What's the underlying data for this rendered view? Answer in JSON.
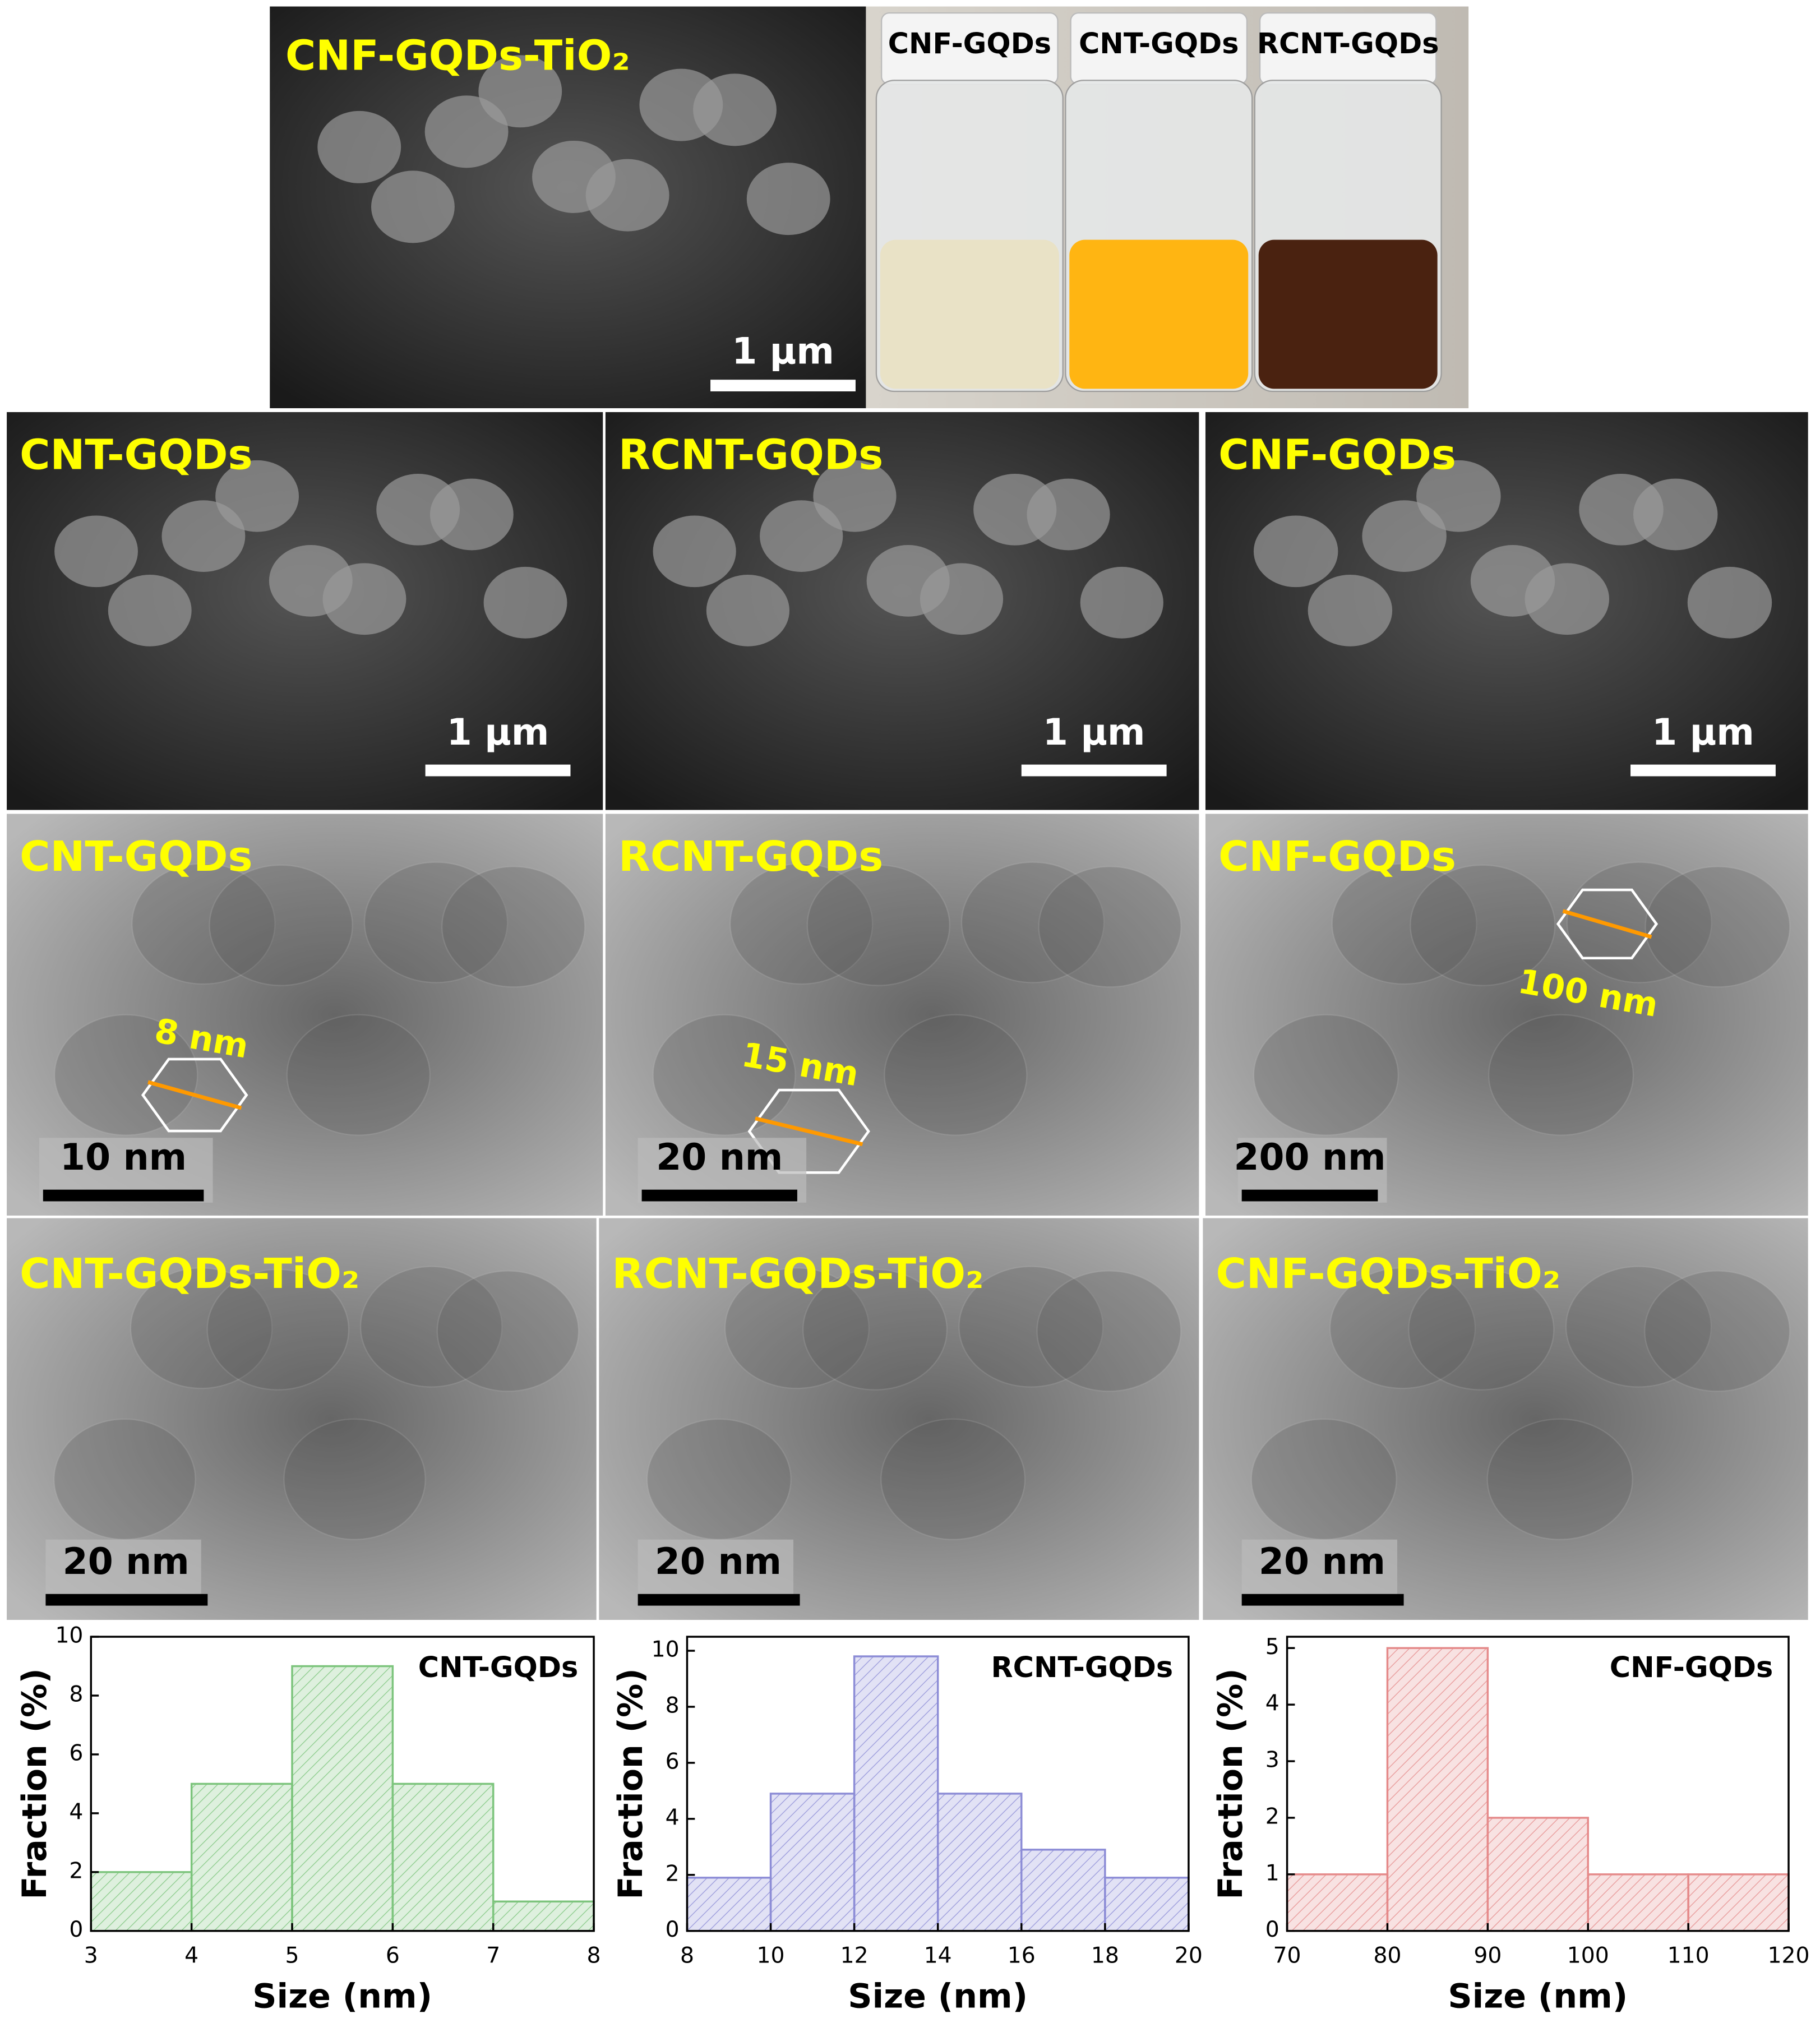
{
  "top": {
    "sem_label": "CNF-GQDs-TiO₂",
    "sem_scale_bar": "1 µm",
    "vial_labels": [
      "CNF-GQDs",
      "CNT-GQDs",
      "RCNT-GQDs"
    ]
  },
  "sem_panels": [
    {
      "label": "CNT-GQDs",
      "scale_bar": "1 µm"
    },
    {
      "label": "RCNT-GQDs",
      "scale_bar": "1 µm"
    },
    {
      "label": "CNF-GQDs",
      "scale_bar": "1 µm"
    }
  ],
  "tem_panels": [
    {
      "label": "CNT-GQDs",
      "scale_bar": "10 nm",
      "particle_size": "8 nm"
    },
    {
      "label": "RCNT-GQDs",
      "scale_bar": "20 nm",
      "particle_size": "15 nm"
    },
    {
      "label": "CNF-GQDs",
      "scale_bar": "200 nm",
      "particle_size": "100 nm"
    }
  ],
  "composite_panels": [
    {
      "label": "CNT-GQDs-TiO₂",
      "scale_bar": "20 nm"
    },
    {
      "label": "RCNT-GQDs-TiO₂",
      "scale_bar": "20 nm"
    },
    {
      "label": "CNF-GQDs-TiO₂",
      "scale_bar": "20 nm"
    }
  ],
  "chart_data": [
    {
      "type": "histogram",
      "title": "CNT-GQDs",
      "x_label": "Size (nm)",
      "y_label": "Fraction (%)",
      "bins": [
        3,
        4,
        5,
        6,
        7,
        8
      ],
      "values": [
        2,
        5,
        9,
        5,
        1
      ],
      "color": "#7cc47c",
      "xlim": [
        3,
        8
      ],
      "xticks": [
        3,
        4,
        5,
        6,
        7,
        8
      ],
      "ylim": [
        0,
        10
      ],
      "yticks": [
        0,
        2,
        4,
        6,
        8,
        10
      ]
    },
    {
      "type": "histogram",
      "title": "RCNT-GQDs",
      "x_label": "Size (nm)",
      "y_label": "Fraction (%)",
      "bins": [
        8,
        10,
        12,
        14,
        16,
        18,
        20
      ],
      "values": [
        1.9,
        4.9,
        9.8,
        4.9,
        2.9,
        1.9
      ],
      "color": "#8c8cd6",
      "xlim": [
        8,
        20
      ],
      "xticks": [
        8,
        10,
        12,
        14,
        16,
        18,
        20
      ],
      "ylim": [
        0,
        10.5
      ],
      "yticks": [
        0,
        2,
        4,
        6,
        8,
        10
      ]
    },
    {
      "type": "histogram",
      "title": "CNF-GQDs",
      "x_label": "Size (nm)",
      "y_label": "Fraction (%)",
      "bins": [
        70,
        80,
        90,
        100,
        110,
        120
      ],
      "values": [
        1,
        5,
        2,
        1,
        1
      ],
      "color": "#e58a8a",
      "xlim": [
        70,
        120
      ],
      "xticks": [
        70,
        80,
        90,
        100,
        110,
        120
      ],
      "ylim": [
        0,
        5.2
      ],
      "yticks": [
        0,
        1,
        2,
        3,
        4,
        5
      ]
    }
  ]
}
